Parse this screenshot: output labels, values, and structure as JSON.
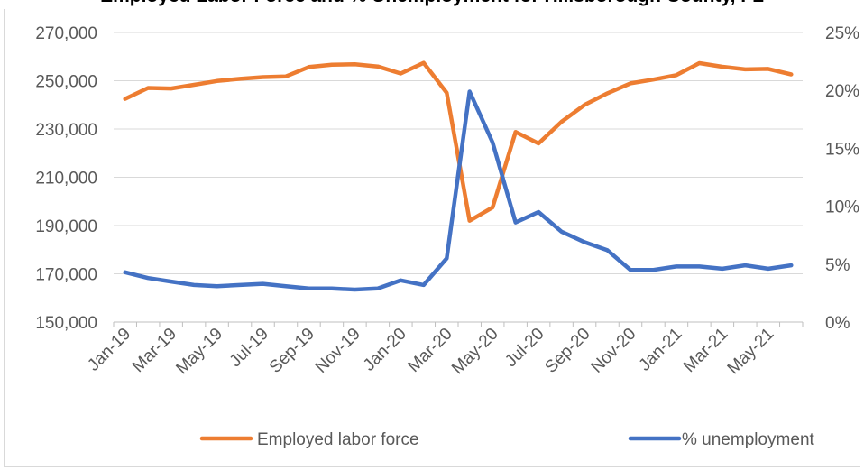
{
  "chart_data": {
    "type": "line",
    "title": "Employed Labor Force and % Unemployment for Hillsborough County, FL",
    "categories": [
      "Jan-19",
      "Feb-19",
      "Mar-19",
      "Apr-19",
      "May-19",
      "Jun-19",
      "Jul-19",
      "Aug-19",
      "Sep-19",
      "Oct-19",
      "Nov-19",
      "Dec-19",
      "Jan-20",
      "Feb-20",
      "Mar-20",
      "Apr-20",
      "May-20",
      "Jun-20",
      "Jul-20",
      "Aug-20",
      "Sep-20",
      "Oct-20",
      "Nov-20",
      "Dec-20",
      "Jan-21",
      "Feb-21",
      "Mar-21",
      "Apr-21",
      "May-21",
      "Jun-21"
    ],
    "x_tick_labels": [
      "Jan-19",
      "Mar-19",
      "May-19",
      "Jul-19",
      "Sep-19",
      "Nov-19",
      "Jan-20",
      "Mar-20",
      "May-20",
      "Jul-20",
      "Sep-20",
      "Nov-20",
      "Jan-21",
      "Mar-21",
      "May-21"
    ],
    "y_left": {
      "ylim": [
        150000,
        270000
      ],
      "ticks": [
        "150,000",
        "170,000",
        "190,000",
        "210,000",
        "230,000",
        "250,000",
        "270,000"
      ]
    },
    "y_right": {
      "ylim": [
        0,
        25
      ],
      "ticks": [
        "0%",
        "5%",
        "10%",
        "15%",
        "20%",
        "25%"
      ]
    },
    "grid": true,
    "legend_position": "bottom",
    "series": [
      {
        "name": "Employed labor force",
        "axis": "left",
        "color": "#ED7D31",
        "values": [
          242500,
          247000,
          246800,
          248300,
          249900,
          250800,
          251500,
          251800,
          255700,
          256600,
          256800,
          255900,
          253000,
          257400,
          245000,
          192000,
          197500,
          228800,
          224000,
          233000,
          240000,
          244800,
          248900,
          250500,
          252300,
          257300,
          255800,
          254700,
          254900,
          252600
        ]
      },
      {
        "name": "% unemployment",
        "axis": "right",
        "color": "#4472C4",
        "values": [
          4.3,
          3.8,
          3.5,
          3.2,
          3.1,
          3.2,
          3.3,
          3.1,
          2.9,
          2.9,
          2.8,
          2.9,
          3.6,
          3.2,
          5.5,
          19.9,
          15.5,
          8.6,
          9.5,
          7.8,
          6.9,
          6.2,
          4.5,
          4.5,
          4.8,
          4.8,
          4.6,
          4.9,
          4.6,
          4.9
        ]
      }
    ]
  }
}
